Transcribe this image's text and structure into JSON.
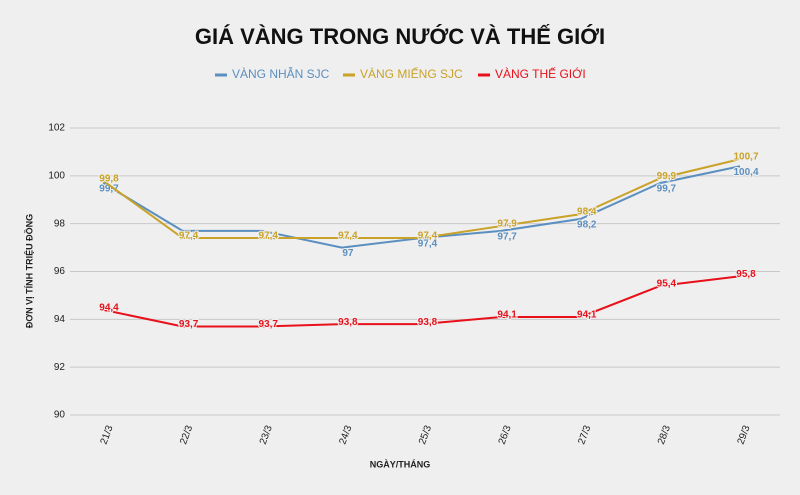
{
  "chart_data": {
    "type": "line",
    "title": "GIÁ VÀNG TRONG NƯỚC VÀ THẾ GIỚI",
    "x_label": "NGÀY/THÁNG",
    "y_label": "ĐƠN VỊ TÍNH TRIỆU ĐỒNG",
    "categories": [
      "21/3",
      "22/3",
      "23/3",
      "24/3",
      "25/3",
      "26/3",
      "27/3",
      "28/3",
      "29/3"
    ],
    "series": [
      {
        "name": "VÀNG NHẪN SJC",
        "color": "#5b8fbf",
        "values": [
          99.7,
          97.7,
          97.7,
          97.0,
          97.4,
          97.7,
          98.2,
          99.7,
          100.4
        ],
        "value_labels": [
          "99,7",
          "97,7",
          "97,7",
          "97",
          "97,4",
          "97,7",
          "98,2",
          "99,7",
          "100,4"
        ]
      },
      {
        "name": "VÀNG MIẾNG SJC",
        "color": "#c9a227",
        "values": [
          99.8,
          97.4,
          97.4,
          97.4,
          97.4,
          97.9,
          98.4,
          99.9,
          100.7
        ],
        "value_labels": [
          "99,8",
          "97,4",
          "97,4",
          "97,4",
          "97,4",
          "97,9",
          "98,4",
          "99,9",
          "100,7"
        ]
      },
      {
        "name": "VÀNG THẾ GIỚI",
        "color": "#e8101a",
        "values": [
          94.4,
          93.7,
          93.7,
          93.8,
          93.8,
          94.1,
          94.1,
          95.4,
          95.8
        ],
        "value_labels": [
          "94,4",
          "93,7",
          "93,7",
          "93,8",
          "93,8",
          "94,1",
          "94,1",
          "95,4",
          "95,8"
        ]
      }
    ],
    "ylim": [
      90,
      102
    ],
    "yticks": [
      90,
      92,
      94,
      96,
      98,
      100,
      102
    ],
    "grid": true
  }
}
